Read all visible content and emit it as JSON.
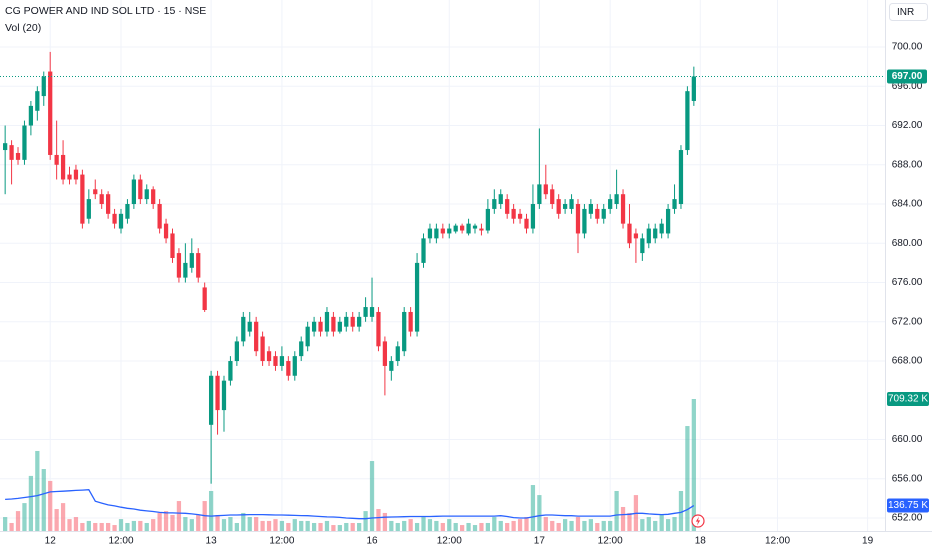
{
  "chart_data": {
    "type": "candlestick",
    "title": "CG POWER AND IND SOL LTD · 15 · NSE",
    "currency": "INR",
    "up_color": "#089981",
    "down_color": "#f23645",
    "grid": true,
    "x": [
      -7,
      -6,
      -5,
      -4,
      -3,
      -2,
      -1,
      0,
      1,
      2,
      3,
      4,
      5,
      6,
      7,
      8,
      9,
      10,
      11,
      12,
      13,
      14,
      15,
      16,
      17,
      18,
      19,
      20,
      21,
      22,
      23,
      24,
      25,
      26,
      27,
      28,
      29,
      30,
      31,
      32,
      33,
      34,
      35,
      36,
      37,
      38,
      39,
      40,
      41,
      42,
      43,
      44,
      45,
      46,
      47,
      48,
      49,
      50,
      51,
      52,
      53,
      54,
      55,
      56,
      57,
      58,
      59,
      60,
      61,
      62,
      63,
      64,
      65,
      66,
      67,
      68,
      69,
      70,
      71,
      72,
      73,
      74,
      75,
      76,
      77,
      78,
      79,
      80,
      81,
      82,
      83,
      84,
      85,
      86,
      87,
      88,
      89,
      90,
      91,
      92,
      93,
      94,
      95,
      96,
      97,
      98,
      99,
      100
    ],
    "open": [
      689.5,
      690,
      689.2,
      688.5,
      692,
      693.5,
      695,
      697.5,
      689,
      689,
      687,
      687.5,
      687,
      682.5,
      685.5,
      685,
      685,
      683,
      681.5,
      682.5,
      684,
      686.5,
      684.5,
      685.5,
      684,
      682,
      681,
      679,
      676.5,
      677.5,
      679,
      675.5,
      661.5,
      666.5,
      663,
      666,
      668,
      670,
      671,
      672,
      670.5,
      669,
      668.5,
      667.5,
      668,
      666.5,
      668.5,
      669.5,
      671,
      672,
      671,
      672.5,
      671,
      671.5,
      672.5,
      671.5,
      672.5,
      672.5,
      673,
      670,
      667,
      668,
      669,
      673,
      671,
      678,
      680.5,
      680.5,
      681.5,
      681,
      681.2,
      681.8,
      681,
      681.5,
      681.5,
      681.3,
      683.5,
      684,
      684.5,
      683.5,
      683,
      682.5,
      681.5,
      684,
      686,
      685.5,
      684.5,
      683.5,
      683.5,
      684,
      681,
      683,
      683.5,
      682.5,
      683.5,
      684,
      685,
      682,
      681,
      679,
      680,
      680.5,
      681,
      681,
      683.5,
      684,
      689.5,
      694.5
    ],
    "high": [
      692,
      690.5,
      689.8,
      692.5,
      694.5,
      696,
      697.5,
      699.5,
      692.5,
      690.5,
      687.8,
      688,
      687.5,
      685.5,
      686.5,
      685.5,
      685.3,
      683.5,
      683.5,
      684.5,
      687,
      687,
      686,
      685.8,
      684.5,
      682.5,
      681.5,
      679.5,
      680,
      680.5,
      679.5,
      676,
      667,
      667,
      666.5,
      668.5,
      670.5,
      673,
      673,
      672.5,
      671,
      669.5,
      669,
      669.5,
      668.5,
      669,
      670.5,
      672,
      672.5,
      672.5,
      673.5,
      673,
      672.5,
      673,
      673,
      673,
      674.5,
      676.5,
      673.5,
      670.5,
      668.5,
      670,
      673.5,
      673.5,
      679,
      681,
      682,
      682,
      682,
      682,
      682,
      682,
      682.5,
      682,
      682,
      684.5,
      685.5,
      685.5,
      685,
      684,
      683.5,
      683,
      686,
      691.7,
      688,
      686,
      685,
      684.5,
      685,
      684.5,
      684,
      684.5,
      684,
      684,
      685,
      687.5,
      685.5,
      684,
      681.5,
      681,
      682,
      682,
      682.5,
      684,
      686,
      690,
      696,
      698
    ],
    "low": [
      685,
      686,
      688,
      688,
      691,
      692.5,
      694,
      688.5,
      686.5,
      686,
      686,
      686,
      681.5,
      682,
      684.5,
      683.5,
      682.5,
      681.5,
      681,
      682,
      683.5,
      684,
      684,
      683.5,
      681,
      680,
      678,
      676,
      676,
      677,
      676,
      673,
      655.5,
      660.5,
      660.8,
      665.5,
      667.5,
      669.5,
      670.5,
      668.5,
      667.5,
      667.5,
      667,
      667,
      666,
      666,
      668,
      669,
      670.5,
      670.5,
      670.5,
      670.5,
      670.8,
      671,
      671,
      671,
      672,
      672,
      669,
      664.5,
      666,
      667.5,
      668.5,
      670.5,
      670.5,
      677.5,
      680,
      680,
      680.5,
      680.5,
      681,
      681,
      680.8,
      681,
      680.8,
      681,
      683,
      683.5,
      682.5,
      682,
      682,
      681,
      681,
      683.5,
      684.5,
      683.5,
      682.5,
      683,
      683,
      679,
      680.5,
      682.5,
      682,
      682,
      683,
      683.5,
      681.5,
      679.5,
      678,
      678.2,
      679.5,
      680,
      680.5,
      680.5,
      683,
      683.5,
      689,
      694
    ],
    "close": [
      690.2,
      688.5,
      688.5,
      692,
      694,
      695.5,
      697,
      689,
      688,
      686.5,
      686.5,
      686.5,
      682,
      684.5,
      685,
      684,
      683,
      682,
      683,
      684,
      686.5,
      684.5,
      685.5,
      684,
      681.5,
      680.5,
      678.5,
      676.5,
      678,
      679,
      676.5,
      673.2,
      666.5,
      663,
      666,
      668,
      670,
      672.5,
      672,
      669,
      668,
      668,
      667.5,
      668.5,
      666.5,
      668.5,
      670,
      671.5,
      672,
      671,
      673,
      671,
      672,
      672.5,
      671.5,
      672.5,
      673.5,
      673.5,
      669.5,
      667.5,
      668,
      669.5,
      673,
      671,
      678,
      680.5,
      681.5,
      681.5,
      681,
      681.5,
      681.8,
      681.3,
      682,
      681.8,
      681.3,
      683.5,
      684.5,
      685,
      683,
      682.5,
      682.5,
      681.5,
      684,
      686,
      685,
      684,
      683,
      684,
      684.5,
      681,
      683.5,
      684,
      682.5,
      683.5,
      684.5,
      685,
      682,
      680,
      680.5,
      680.5,
      681.5,
      681.5,
      682,
      683.5,
      684.5,
      689.5,
      695.5,
      697
    ],
    "ylim": [
      650.68,
      704.79
    ],
    "yticks": [
      {
        "value": 700,
        "label": "700.00"
      },
      {
        "value": 696,
        "label": "696.00"
      },
      {
        "value": 692,
        "label": "692.00"
      },
      {
        "value": 688,
        "label": "688.00"
      },
      {
        "value": 684,
        "label": "684.00"
      },
      {
        "value": 680,
        "label": "680.00"
      },
      {
        "value": 676,
        "label": "676.00"
      },
      {
        "value": 672,
        "label": "672.00"
      },
      {
        "value": 668,
        "label": "668.00"
      },
      {
        "value": 660,
        "label": "660.00"
      },
      {
        "value": 656,
        "label": "656.00"
      },
      {
        "value": 652,
        "label": "652.00"
      }
    ],
    "xlim": [
      -7.8,
      129.7
    ],
    "xticks": [
      {
        "value": 0,
        "label": "12"
      },
      {
        "value": 11,
        "label": "12:00"
      },
      {
        "value": 25,
        "label": "13"
      },
      {
        "value": 36,
        "label": "12:00"
      },
      {
        "value": 50,
        "label": "16"
      },
      {
        "value": 62,
        "label": "12:00"
      },
      {
        "value": 76,
        "label": "17"
      },
      {
        "value": 87,
        "label": "12:00"
      },
      {
        "value": 101,
        "label": "18"
      },
      {
        "value": 113,
        "label": "12:00"
      },
      {
        "value": 127,
        "label": "19"
      }
    ],
    "last_price": {
      "value": 697,
      "label": "697.00"
    },
    "volume": {
      "name": "Vol (20)",
      "up_color": "rgba(34,171,148,0.5)",
      "down_color": "rgba(247,82,95,0.5)",
      "ma_color": "#2962ff",
      "ylim": [
        0,
        2853400
      ],
      "values": [
        75000,
        43000,
        107000,
        150000,
        296000,
        430000,
        333000,
        269000,
        118000,
        150000,
        64000,
        75000,
        43000,
        54000,
        43000,
        43000,
        43000,
        32000,
        64000,
        43000,
        54000,
        54000,
        43000,
        64000,
        97000,
        107000,
        86000,
        161000,
        75000,
        64000,
        86000,
        161000,
        215000,
        86000,
        64000,
        75000,
        43000,
        97000,
        75000,
        75000,
        54000,
        54000,
        64000,
        54000,
        43000,
        64000,
        54000,
        54000,
        43000,
        43000,
        54000,
        32000,
        32000,
        43000,
        43000,
        43000,
        107000,
        376000,
        118000,
        97000,
        54000,
        43000,
        54000,
        64000,
        43000,
        75000,
        64000,
        54000,
        43000,
        64000,
        43000,
        32000,
        43000,
        32000,
        43000,
        43000,
        75000,
        54000,
        43000,
        54000,
        64000,
        75000,
        247000,
        193000,
        75000,
        54000,
        43000,
        64000,
        54000,
        75000,
        54000,
        64000,
        43000,
        54000,
        54000,
        215000,
        129000,
        97000,
        193000,
        64000,
        75000,
        54000,
        86000,
        64000,
        75000,
        215000,
        564000,
        709320
      ],
      "last_label": "709.32 K",
      "ma_values": [
        170000,
        172000,
        175000,
        180000,
        185000,
        190000,
        200000,
        210000,
        212000,
        214000,
        216000,
        218000,
        220000,
        222000,
        160000,
        150000,
        140000,
        135000,
        128000,
        122000,
        118000,
        112000,
        108000,
        105000,
        100000,
        98000,
        97000,
        96000,
        95000,
        92000,
        88000,
        82000,
        80000,
        82000,
        84000,
        86000,
        86000,
        87000,
        88000,
        88000,
        88000,
        87000,
        86000,
        86000,
        85000,
        84000,
        83000,
        82000,
        80000,
        78000,
        76000,
        75000,
        73000,
        70000,
        68000,
        66000,
        66000,
        70000,
        72000,
        74000,
        75000,
        76000,
        77000,
        78000,
        78000,
        78000,
        78000,
        79000,
        80000,
        80000,
        80000,
        80000,
        80000,
        80000,
        80000,
        80000,
        80000,
        82000,
        78000,
        72000,
        70000,
        70000,
        76000,
        82000,
        86000,
        86000,
        84000,
        82000,
        82000,
        80000,
        80000,
        80000,
        80000,
        80000,
        80000,
        86000,
        88000,
        90000,
        95000,
        95000,
        92000,
        90000,
        88000,
        90000,
        95000,
        100000,
        115000,
        136750
      ],
      "ma_last_label": "136.75 K"
    }
  }
}
